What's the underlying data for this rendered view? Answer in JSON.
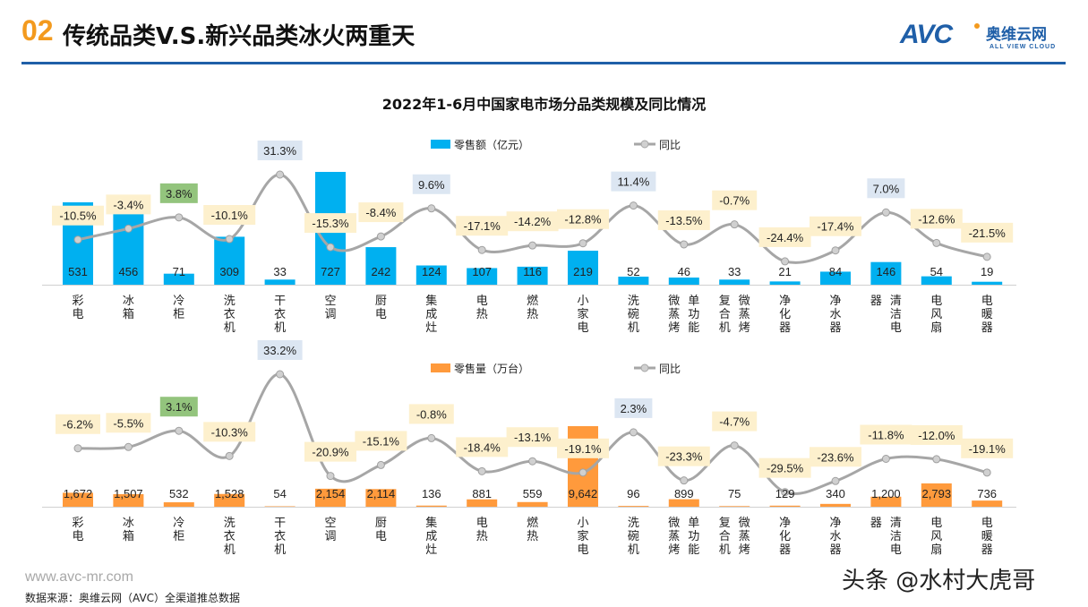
{
  "header": {
    "number": "02",
    "title": "传统品类V.S.新兴品类冰火两重天"
  },
  "logo": {
    "mark": "AVC",
    "cn": "奥维云网",
    "en": "ALL VIEW CLOUD"
  },
  "footer": {
    "url": "www.avc-mr.com",
    "source": "数据来源：奥维云网（AVC）全渠道推总数据"
  },
  "watermark": "头条 @水村大虎哥",
  "colors": {
    "accent": "#f39a1e",
    "brand": "#1f5fa8",
    "sales_bar": "#00b0f0",
    "volume_bar": "#ff9a3c",
    "line": "#a6a6a6",
    "neg_label": "#fdf0cd",
    "pos_label": "#dce6f2",
    "green_label": "#93c47d"
  },
  "chart_title": "2022年1-6月中国家电市场分品类规模及同比情况",
  "chart_data": [
    {
      "type": "bar+line",
      "categories": [
        "彩电",
        "冰箱",
        "冷柜",
        "洗衣机",
        "干衣机",
        "空调",
        "厨电",
        "集成灶",
        "电热",
        "燃热",
        "小家电",
        "洗碗机",
        "单功能微蒸烤",
        "微蒸烤复合机",
        "净化器",
        "净水器",
        "清洁电器",
        "电风扇",
        "电暖器"
      ],
      "series": [
        {
          "name": "零售额（亿元）",
          "type": "bar",
          "values": [
            531,
            456,
            71,
            309,
            33,
            727,
            242,
            124,
            107,
            116,
            219,
            52,
            46,
            33,
            21,
            84,
            146,
            54,
            19
          ],
          "labels": [
            "531",
            "456",
            "71",
            "309",
            "33",
            "727",
            "242",
            "124",
            "107",
            "116",
            "219",
            "52",
            "46",
            "33",
            "21",
            "84",
            "146",
            "54",
            "19"
          ]
        },
        {
          "name": "同比",
          "type": "line",
          "values": [
            -10.5,
            -3.4,
            3.8,
            -10.1,
            31.3,
            -15.3,
            -8.4,
            9.6,
            -17.1,
            -14.2,
            -12.8,
            11.4,
            -13.5,
            -0.7,
            -24.4,
            -17.4,
            7.0,
            -12.6,
            -21.5
          ],
          "labels": [
            "-10.5%",
            "-3.4%",
            "3.8%",
            "-10.1%",
            "31.3%",
            "-15.3%",
            "-8.4%",
            "9.6%",
            "-17.1%",
            "-14.2%",
            "-12.8%",
            "11.4%",
            "-13.5%",
            "-0.7%",
            "-24.4%",
            "-17.4%",
            "7.0%",
            "-12.6%",
            "-21.5%"
          ],
          "label_style": [
            "neg",
            "neg",
            "green",
            "neg",
            "pos",
            "neg",
            "neg",
            "pos",
            "neg",
            "neg",
            "neg",
            "pos",
            "neg",
            "neg",
            "neg",
            "neg",
            "pos",
            "neg",
            "neg"
          ]
        }
      ],
      "legend": "top-center"
    },
    {
      "type": "bar+line",
      "categories": [
        "彩电",
        "冰箱",
        "冷柜",
        "洗衣机",
        "干衣机",
        "空调",
        "厨电",
        "集成灶",
        "电热",
        "燃热",
        "小家电",
        "洗碗机",
        "单功能微蒸烤",
        "微蒸烤复合机",
        "净化器",
        "净水器",
        "清洁电器",
        "电风扇",
        "电暖器"
      ],
      "series": [
        {
          "name": "零售量（万台）",
          "type": "bar",
          "values": [
            1672,
            1507,
            532,
            1528,
            54,
            2154,
            2114,
            136,
            881,
            559,
            9642,
            96,
            899,
            75,
            129,
            340,
            1200,
            2793,
            736
          ],
          "labels": [
            "1,672",
            "1,507",
            "532",
            "1,528",
            "54",
            "2,154",
            "2,114",
            "136",
            "881",
            "559",
            "9,642",
            "96",
            "899",
            "75",
            "129",
            "340",
            "1,200",
            "2,793",
            "736"
          ]
        },
        {
          "name": "同比",
          "type": "line",
          "values": [
            -6.2,
            -5.5,
            3.1,
            -10.3,
            33.2,
            -20.9,
            -15.1,
            -0.8,
            -18.4,
            -13.1,
            -19.1,
            2.3,
            -23.3,
            -4.7,
            -29.5,
            -23.6,
            -11.8,
            -12.0,
            -19.1
          ],
          "labels": [
            "-6.2%",
            "-5.5%",
            "3.1%",
            "-10.3%",
            "33.2%",
            "-20.9%",
            "-15.1%",
            "-0.8%",
            "-18.4%",
            "-13.1%",
            "-19.1%",
            "2.3%",
            "-23.3%",
            "-4.7%",
            "-29.5%",
            "-23.6%",
            "-11.8%",
            "-12.0%",
            "-19.1%"
          ],
          "label_style": [
            "neg",
            "neg",
            "green",
            "neg",
            "pos",
            "neg",
            "neg",
            "neg",
            "neg",
            "neg",
            "neg",
            "pos",
            "neg",
            "neg",
            "neg",
            "neg",
            "neg",
            "neg",
            "neg"
          ]
        }
      ],
      "legend": "top-center"
    }
  ]
}
